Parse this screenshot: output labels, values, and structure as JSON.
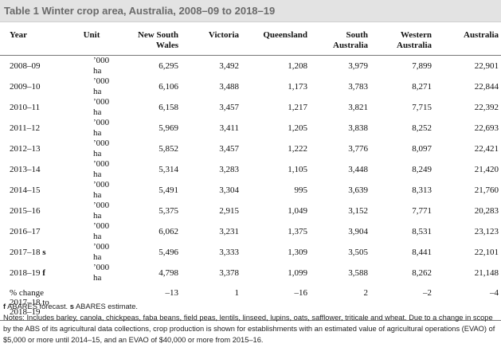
{
  "title": "Table 1 Winter crop area, Australia, 2008–09 to 2018–19",
  "columns": {
    "year": "Year",
    "unit": "Unit",
    "nsw": "New South Wales",
    "vic": "Victoria",
    "qld": "Queensland",
    "sa": "South Australia",
    "wa": "Western Australia",
    "aus": "Australia"
  },
  "rows": [
    {
      "year": "2008–09",
      "flag": "",
      "unit": "’000 ha",
      "nsw": "6,295",
      "vic": "3,492",
      "qld": "1,208",
      "sa": "3,979",
      "wa": "7,899",
      "aus": "22,901"
    },
    {
      "year": "2009–10",
      "flag": "",
      "unit": "’000 ha",
      "nsw": "6,106",
      "vic": "3,488",
      "qld": "1,173",
      "sa": "3,783",
      "wa": "8,271",
      "aus": "22,844"
    },
    {
      "year": "2010–11",
      "flag": "",
      "unit": "’000 ha",
      "nsw": "6,158",
      "vic": "3,457",
      "qld": "1,217",
      "sa": "3,821",
      "wa": "7,715",
      "aus": "22,392"
    },
    {
      "year": "2011–12",
      "flag": "",
      "unit": "’000 ha",
      "nsw": "5,969",
      "vic": "3,411",
      "qld": "1,205",
      "sa": "3,838",
      "wa": "8,252",
      "aus": "22,693"
    },
    {
      "year": "2012–13",
      "flag": "",
      "unit": "’000 ha",
      "nsw": "5,852",
      "vic": "3,457",
      "qld": "1,222",
      "sa": "3,776",
      "wa": "8,097",
      "aus": "22,421"
    },
    {
      "year": "2013–14",
      "flag": "",
      "unit": "’000 ha",
      "nsw": "5,314",
      "vic": "3,283",
      "qld": "1,105",
      "sa": "3,448",
      "wa": "8,249",
      "aus": "21,420"
    },
    {
      "year": "2014–15",
      "flag": "",
      "unit": "’000 ha",
      "nsw": "5,491",
      "vic": "3,304",
      "qld": "995",
      "sa": "3,639",
      "wa": "8,313",
      "aus": "21,760"
    },
    {
      "year": "2015–16",
      "flag": "",
      "unit": "’000 ha",
      "nsw": "5,375",
      "vic": "2,915",
      "qld": "1,049",
      "sa": "3,152",
      "wa": "7,771",
      "aus": "20,283"
    },
    {
      "year": "2016–17",
      "flag": "",
      "unit": "’000 ha",
      "nsw": "6,062",
      "vic": "3,231",
      "qld": "1,375",
      "sa": "3,904",
      "wa": "8,531",
      "aus": "23,123"
    },
    {
      "year": "2017–18",
      "flag": "s",
      "unit": "’000 ha",
      "nsw": "5,496",
      "vic": "3,333",
      "qld": "1,309",
      "sa": "3,505",
      "wa": "8,441",
      "aus": "22,101"
    },
    {
      "year": "2018–19",
      "flag": "f",
      "unit": "’000 ha",
      "nsw": "4,798",
      "vic": "3,378",
      "qld": "1,099",
      "sa": "3,588",
      "wa": "8,262",
      "aus": "21,148"
    }
  ],
  "change_row": {
    "label": "% change 2017–18 to 2018–19",
    "unit": "",
    "nsw": "–13",
    "vic": "1",
    "qld": "–16",
    "sa": "2",
    "wa": "–2",
    "aus": "–4"
  },
  "footnotes": {
    "f_flag": "f",
    "f_text": " ABARES forecast. ",
    "s_flag": "s",
    "s_text": " ABARES estimate.",
    "notes": "Notes: Includes barley, canola, chickpeas, faba beans, field peas, lentils, linseed, lupins, oats, safflower, triticale and wheat. Due to a change in scope by the ABS of its agricultural data collections, crop production is shown for establishments with an estimated value of agricultural operations (EVAO) of $5,000 or more until 2014–15, and an EVAO of $40,000 or more from 2015–16."
  }
}
